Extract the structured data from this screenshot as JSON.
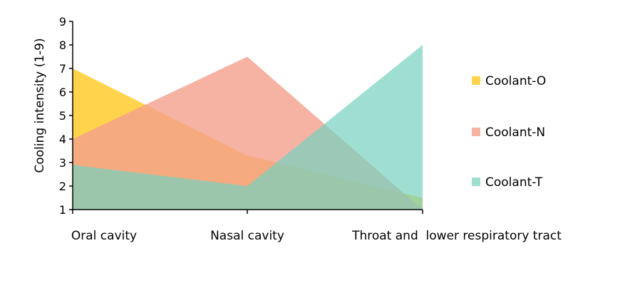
{
  "chart_data": {
    "type": "area",
    "categories": [
      "Oral cavity",
      "Nasal cavity",
      "Throat and  lower respiratory tract"
    ],
    "series": [
      {
        "name": "Coolant-O",
        "values": [
          7.0,
          3.3,
          1.5
        ],
        "color": "#FFC000",
        "opacity": 0.7
      },
      {
        "name": "Coolant-N",
        "values": [
          4.0,
          7.5,
          1.0
        ],
        "color": "#F4A08C",
        "opacity": 0.8
      },
      {
        "name": "Coolant-T",
        "values": [
          2.9,
          2.0,
          8.0
        ],
        "color": "#76D1BF",
        "opacity": 0.7
      }
    ],
    "xlabel": "",
    "ylabel": "Cooling intensity  (1-9)",
    "ylim": [
      1,
      9
    ],
    "yticks": [
      1,
      2,
      3,
      4,
      5,
      6,
      7,
      8,
      9
    ],
    "grid": false,
    "legend_position": "right"
  }
}
